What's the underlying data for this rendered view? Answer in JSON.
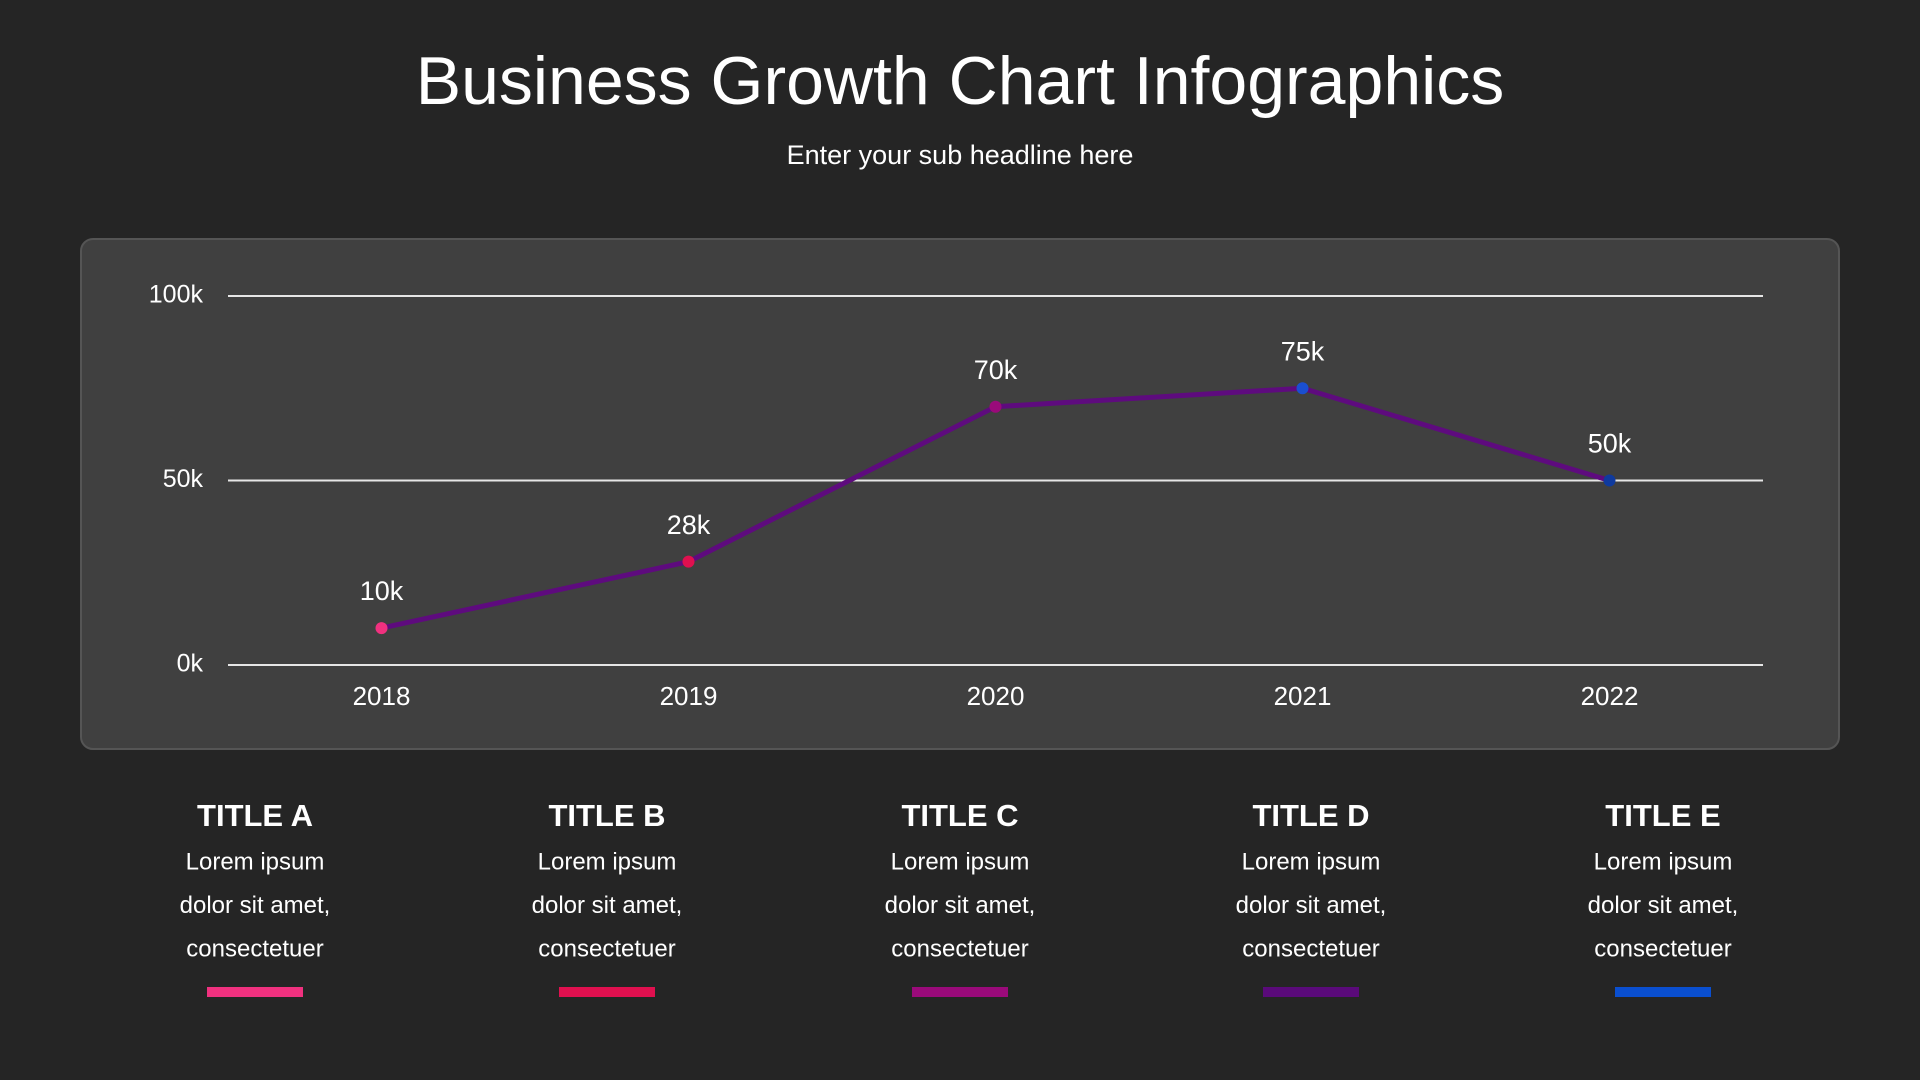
{
  "chart_data": {
    "type": "line",
    "title": "Business Growth Chart Infographics",
    "subtitle": "Enter your sub headline here",
    "categories": [
      "2018",
      "2019",
      "2020",
      "2021",
      "2022"
    ],
    "series": [
      {
        "color": "#5e0b7e",
        "values": [
          10000,
          28000,
          70000,
          75000,
          50000
        ],
        "value_labels": [
          "10k",
          "28k",
          "70k",
          "75k",
          "50k"
        ],
        "point_colors": [
          "#f0317f",
          "#e0104f",
          "#9a0a7a",
          "#1a4fd0",
          "#0f3a9e"
        ]
      }
    ],
    "ylim": [
      0,
      100000
    ],
    "yticks": [
      {
        "value": 0,
        "label": "0k"
      },
      {
        "value": 50000,
        "label": "50k"
      },
      {
        "value": 100000,
        "label": "100k"
      }
    ],
    "grid": true
  },
  "cards": [
    {
      "title": "TITLE A",
      "lines": [
        "Lorem ipsum",
        "dolor sit amet,",
        "consectetuer"
      ],
      "color": "#f0317f"
    },
    {
      "title": "TITLE B",
      "lines": [
        "Lorem ipsum",
        "dolor sit amet,",
        "consectetuer"
      ],
      "color": "#e0104f"
    },
    {
      "title": "TITLE C",
      "lines": [
        "Lorem ipsum",
        "dolor sit amet,",
        "consectetuer"
      ],
      "color": "#9a0a7a"
    },
    {
      "title": "TITLE D",
      "lines": [
        "Lorem ipsum",
        "dolor sit amet,",
        "consectetuer"
      ],
      "color": "#5a0a7a"
    },
    {
      "title": "TITLE E",
      "lines": [
        "Lorem ipsum",
        "dolor sit amet,",
        "consectetuer"
      ],
      "color": "#0a4fd0"
    }
  ]
}
